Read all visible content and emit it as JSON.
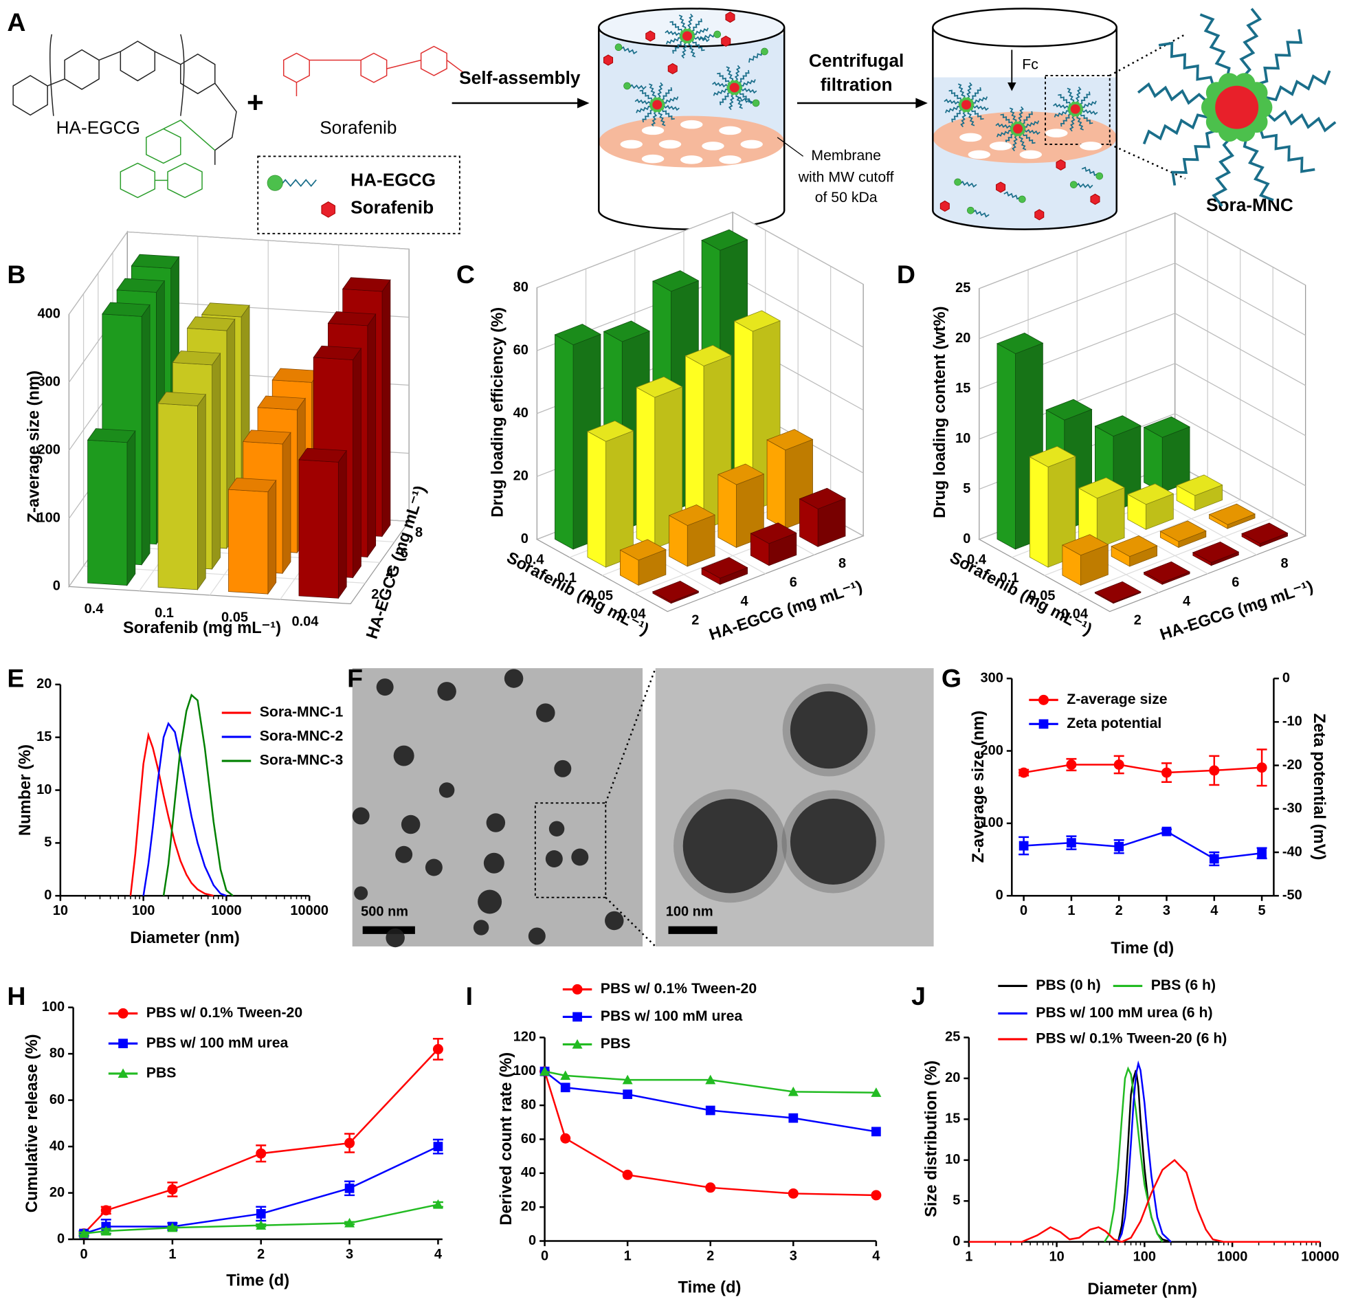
{
  "panel_labels": [
    "A",
    "B",
    "C",
    "D",
    "E",
    "F",
    "G",
    "H",
    "I",
    "J"
  ],
  "scheme": {
    "ha_egcg": "HA-EGCG",
    "sorafenib": "Sorafenib",
    "plus": "+",
    "legend": [
      "HA-EGCG",
      "Sorafenib"
    ],
    "step1": "Self-assembly",
    "step2": [
      "Centrifugal",
      "filtration"
    ],
    "membrane": [
      "Membrane",
      "with MW cutoff",
      "of 50 kDa"
    ],
    "force": "Fc",
    "product": "Sora-MNC"
  },
  "tem": {
    "scale_bars": [
      "500 nm",
      "100 nm"
    ]
  },
  "chart_data": [
    {
      "type": "bar3d",
      "zlabel": "Z-average size (nm)",
      "xlabel": "Sorafenib (mg mL⁻¹)",
      "ylabel": "HA-EGCG (mg mL⁻¹)",
      "x_categories": [
        "0.4",
        "0.1",
        "0.05",
        "0.04"
      ],
      "y_categories": [
        "2",
        "4",
        "6",
        "8"
      ],
      "colors": [
        "#1e9b1e",
        "#c8c820",
        "#ff8c00",
        "#a00000"
      ],
      "values": [
        [
          210,
          365,
          370,
          375
        ],
        [
          270,
          300,
          320,
          310
        ],
        [
          150,
          190,
          210,
          220
        ],
        [
          200,
          320,
          340,
          360
        ]
      ],
      "zlim": [
        0,
        400
      ],
      "zticks": [
        0,
        100,
        200,
        300,
        400
      ]
    },
    {
      "type": "bar3d",
      "zlabel": "Drug loading efficiency (%)",
      "xlabel": "Sorafenib (mg mL⁻¹)",
      "ylabel": "HA-EGCG (mg mL⁻¹)",
      "x_categories": [
        "0.4",
        "0.1",
        "0.05",
        "0.04"
      ],
      "y_categories": [
        "2",
        "4",
        "6",
        "8"
      ],
      "colors": [
        "#1e9b1e",
        "#ffff20",
        "#ffa500",
        "#a00000"
      ],
      "values": [
        [
          65,
          60,
          70,
          77
        ],
        [
          40,
          48,
          52,
          57
        ],
        [
          8,
          13,
          20,
          25
        ],
        [
          0.5,
          2,
          7,
          12
        ]
      ],
      "zlim": [
        0,
        80
      ],
      "zticks": [
        0,
        20,
        40,
        60,
        80
      ]
    },
    {
      "type": "bar3d",
      "zlabel": "Drug loading content (wt%)",
      "xlabel": "Sorafenib (mg mL⁻¹)",
      "ylabel": "HA-EGCG (mg mL⁻¹)",
      "x_categories": [
        "0.4",
        "0.1",
        "0.05",
        "0.04"
      ],
      "y_categories": [
        "2",
        "4",
        "6",
        "8"
      ],
      "colors": [
        "#1e9b1e",
        "#ffff20",
        "#ffa500",
        "#a00000"
      ],
      "values": [
        [
          19.5,
          11,
          7.5,
          5.5
        ],
        [
          10,
          5,
          2.5,
          1.5
        ],
        [
          3,
          1,
          0.6,
          0.4
        ],
        [
          0.1,
          0.2,
          0.3,
          0.3
        ]
      ],
      "zlim": [
        0,
        25
      ],
      "zticks": [
        0,
        5,
        10,
        15,
        20,
        25
      ]
    },
    {
      "type": "line",
      "xlabel": "Diameter (nm)",
      "ylabel": "Number (%)",
      "xlog": true,
      "xlim": [
        10,
        10000
      ],
      "xticks": [
        10,
        100,
        1000,
        10000
      ],
      "ylim": [
        0,
        20
      ],
      "yticks": [
        0,
        5,
        10,
        15,
        20
      ],
      "legend": "upper right",
      "x": [
        60,
        70,
        80,
        90,
        100,
        115,
        130,
        150,
        175,
        200,
        240,
        280,
        330,
        380,
        450,
        550,
        700,
        850,
        1000,
        1200
      ],
      "series": [
        {
          "name": "Sora-MNC-1",
          "color": "#ff0000",
          "values": [
            null,
            0,
            4,
            8.5,
            12.5,
            15.2,
            14,
            12,
            9.5,
            7.5,
            5,
            3.3,
            2,
            1.2,
            0.6,
            0.2,
            0,
            null,
            null,
            null
          ]
        },
        {
          "name": "Sora-MNC-2",
          "color": "#0000ff",
          "values": [
            null,
            null,
            null,
            null,
            0,
            3,
            6.5,
            11,
            15,
            16.3,
            15.5,
            13,
            10,
            7.5,
            5,
            2.8,
            1,
            0.2,
            0,
            null
          ]
        },
        {
          "name": "Sora-MNC-3",
          "color": "#008000",
          "values": [
            null,
            null,
            null,
            null,
            null,
            null,
            null,
            null,
            0,
            3,
            9,
            14,
            17.5,
            19,
            18.5,
            14,
            7,
            2.5,
            0.5,
            0
          ]
        }
      ]
    },
    {
      "type": "line",
      "xlabel": "Time (d)",
      "ylabel": "Z-average size (nm)",
      "y2label": "Zeta potential (mV)",
      "xlim": [
        -0.25,
        5.25
      ],
      "xticks": [
        0,
        1,
        2,
        3,
        4,
        5
      ],
      "ylim": [
        0,
        300
      ],
      "yticks": [
        0,
        100,
        200,
        300
      ],
      "y2lim": [
        -50,
        0
      ],
      "y2ticks": [
        -50,
        -40,
        -30,
        -20,
        -10,
        0
      ],
      "legend": "upper left",
      "x": [
        0,
        1,
        2,
        3,
        4,
        5
      ],
      "series": [
        {
          "name": "Z-average size",
          "color": "#ff0000",
          "marker": "circle",
          "values": [
            170,
            181,
            181,
            170,
            173,
            177
          ],
          "errors": [
            4,
            8,
            12,
            13,
            20,
            25
          ]
        },
        {
          "name": "Zeta potential",
          "color": "#0000ff",
          "marker": "square",
          "axis": "y2",
          "values": [
            -38.5,
            -37.8,
            -38.7,
            -35.2,
            -41.5,
            -40.2
          ],
          "errors": [
            2,
            1.5,
            1.5,
            0.5,
            1.5,
            1.2
          ]
        }
      ]
    },
    {
      "type": "line",
      "xlabel": "Time (d)",
      "ylabel": "Cumulative release (%)",
      "xlim": [
        -0.12,
        4.05
      ],
      "xticks": [
        0,
        1,
        2,
        3,
        4
      ],
      "ylim": [
        0,
        100
      ],
      "yticks": [
        0,
        20,
        40,
        60,
        80,
        100
      ],
      "legend": "upper left",
      "x": [
        0,
        0.25,
        1,
        2,
        3,
        4
      ],
      "series": [
        {
          "name": "PBS w/ 0.1% Tween-20",
          "color": "#ff0000",
          "marker": "circle",
          "values": [
            2.5,
            12.5,
            21.5,
            37,
            41.5,
            82
          ],
          "errors": [
            1,
            1.5,
            3,
            3.5,
            4,
            4.5
          ]
        },
        {
          "name": "PBS w/ 100 mM urea",
          "color": "#0000ff",
          "marker": "square",
          "values": [
            2.5,
            5.5,
            5.5,
            11,
            22,
            40
          ],
          "errors": [
            1,
            3,
            1.5,
            3,
            3,
            3
          ]
        },
        {
          "name": "PBS",
          "color": "#22bb22",
          "marker": "triangle",
          "values": [
            2.5,
            3.5,
            5,
            6,
            7,
            15
          ],
          "errors": [
            0.5,
            1,
            0.5,
            0.5,
            0.5,
            1
          ]
        }
      ]
    },
    {
      "type": "line",
      "xlabel": "Time (d)",
      "ylabel": "Derived count rate (%)",
      "xlim": [
        0,
        4
      ],
      "xticks": [
        0,
        1,
        2,
        3,
        4
      ],
      "ylim": [
        0,
        120
      ],
      "yticks": [
        0,
        20,
        40,
        60,
        80,
        100,
        120
      ],
      "legend": "upper left",
      "x": [
        0,
        0.25,
        1,
        2,
        3,
        4
      ],
      "series": [
        {
          "name": "PBS w/ 0.1% Tween-20",
          "color": "#ff0000",
          "marker": "circle",
          "values": [
            100,
            60.5,
            39,
            31.5,
            28,
            27
          ]
        },
        {
          "name": "PBS w/ 100 mM urea",
          "color": "#0000ff",
          "marker": "square",
          "values": [
            100,
            90.5,
            86.5,
            77,
            72.5,
            64.5
          ]
        },
        {
          "name": "PBS",
          "color": "#22bb22",
          "marker": "triangle",
          "values": [
            100,
            97.5,
            95,
            95,
            88,
            87.5
          ]
        }
      ]
    },
    {
      "type": "line",
      "xlabel": "Diameter (nm)",
      "ylabel": "Size distribution (%)",
      "xlog": true,
      "xlim": [
        1,
        10000
      ],
      "xticks": [
        1,
        10,
        100,
        1000,
        10000
      ],
      "ylim": [
        0,
        25
      ],
      "yticks": [
        0,
        5,
        10,
        15,
        20,
        25
      ],
      "legend": "upper center",
      "series": [
        {
          "name": "PBS (0 h)",
          "color": "#000000",
          "x": [
            50,
            55,
            60,
            65,
            70,
            75,
            80,
            85,
            90,
            100,
            110,
            120,
            140,
            160,
            200
          ],
          "values": [
            0,
            2,
            6,
            12,
            18,
            20,
            21,
            19,
            15,
            9,
            5,
            3,
            1,
            0.3,
            0
          ]
        },
        {
          "name": "PBS (6 h)",
          "color": "#22bb22",
          "x": [
            35,
            40,
            45,
            50,
            55,
            60,
            65,
            70,
            80,
            90,
            100,
            120,
            140,
            160
          ],
          "values": [
            0,
            1,
            4,
            9,
            15,
            20,
            21.2,
            20.5,
            16,
            11,
            7,
            3,
            1,
            0
          ]
        },
        {
          "name": "PBS w/ 100 mM urea (6 h)",
          "color": "#0000ff",
          "x": [
            50,
            55,
            60,
            65,
            70,
            75,
            80,
            85,
            90,
            100,
            110,
            120,
            140,
            160,
            200
          ],
          "values": [
            0,
            1,
            3,
            7,
            12,
            17,
            20.5,
            21.8,
            21,
            17,
            12,
            8,
            3,
            1,
            0
          ]
        },
        {
          "name": "PBS w/ 0.1% Tween-20 (6 h)",
          "color": "#ff0000",
          "x": [
            1,
            4,
            6,
            8.5,
            11,
            14,
            18,
            24,
            30,
            36,
            45,
            55,
            70,
            90,
            120,
            160,
            220,
            300,
            400,
            500,
            600,
            800,
            10000
          ],
          "values": [
            0,
            0,
            0.8,
            1.8,
            1.2,
            0.3,
            0.5,
            1.5,
            1.8,
            1.3,
            0.3,
            0,
            0.5,
            2.5,
            6,
            8.8,
            10,
            8.5,
            4,
            1.5,
            0.3,
            0,
            0
          ]
        }
      ]
    }
  ]
}
